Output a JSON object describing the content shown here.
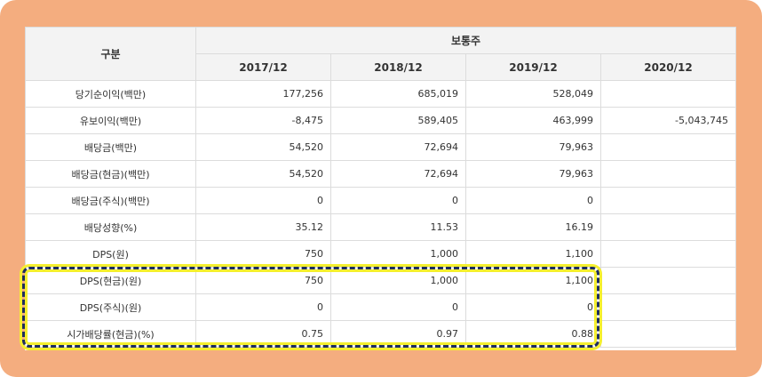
{
  "header": {
    "category_label": "구분",
    "group_label": "보통주",
    "years": [
      "2017/12",
      "2018/12",
      "2019/12",
      "2020/12"
    ]
  },
  "rows": [
    {
      "label": "당기순이익(백만)",
      "values": [
        "177,256",
        "685,019",
        "528,049",
        ""
      ]
    },
    {
      "label": "유보이익(백만)",
      "values": [
        "-8,475",
        "589,405",
        "463,999",
        "-5,043,745"
      ]
    },
    {
      "label": "배당금(백만)",
      "values": [
        "54,520",
        "72,694",
        "79,963",
        ""
      ]
    },
    {
      "label": "배당금(현금)(백만)",
      "values": [
        "54,520",
        "72,694",
        "79,963",
        ""
      ]
    },
    {
      "label": "배당금(주식)(백만)",
      "values": [
        "0",
        "0",
        "0",
        ""
      ]
    },
    {
      "label": "배당성향(%)",
      "values": [
        "35.12",
        "11.53",
        "16.19",
        ""
      ]
    },
    {
      "label": "DPS(원)",
      "values": [
        "750",
        "1,000",
        "1,100",
        ""
      ]
    },
    {
      "label": "DPS(현금)(원)",
      "values": [
        "750",
        "1,000",
        "1,100",
        ""
      ]
    },
    {
      "label": "DPS(주식)(원)",
      "values": [
        "0",
        "0",
        "0",
        ""
      ]
    },
    {
      "label": "시가배당률(현금)(%)",
      "values": [
        "0.75",
        "0.97",
        "0.88",
        ""
      ]
    }
  ],
  "colors": {
    "frame": "#f4ad7f",
    "highlight_dash": "#1d2d5e",
    "highlight_glow": "#f4ef2e",
    "header_bg": "#f3f3f3"
  }
}
